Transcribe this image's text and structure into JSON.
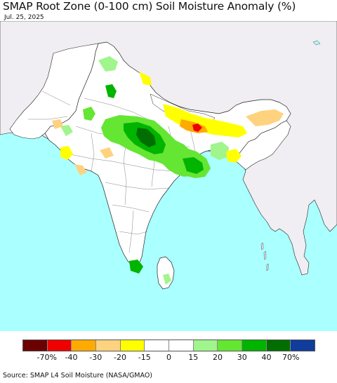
{
  "title": "SMAP Root Zone (0-100 cm) Soil Moisture Anomaly (%)",
  "date": "Jul. 25, 2025",
  "source": "Source: SMAP L4 Soil Moisture (NASA/GMAO)",
  "colors": {
    "ocean": "#aaffff",
    "land_out_of_region": "#f0eef2",
    "land_in_region": "#ffffff",
    "border": "#222222"
  },
  "legend": {
    "colors": [
      "#6b0000",
      "#ee0000",
      "#ffaa00",
      "#ffd27f",
      "#ffff00",
      "#ffffff",
      "#ffffff",
      "#a0f58c",
      "#64e632",
      "#00b400",
      "#006e00",
      "#103c9c"
    ],
    "ticks": [
      "-70%",
      "-40",
      "-30",
      "-20",
      "-15",
      "0",
      "15",
      "20",
      "30",
      "40",
      "70%"
    ]
  }
}
